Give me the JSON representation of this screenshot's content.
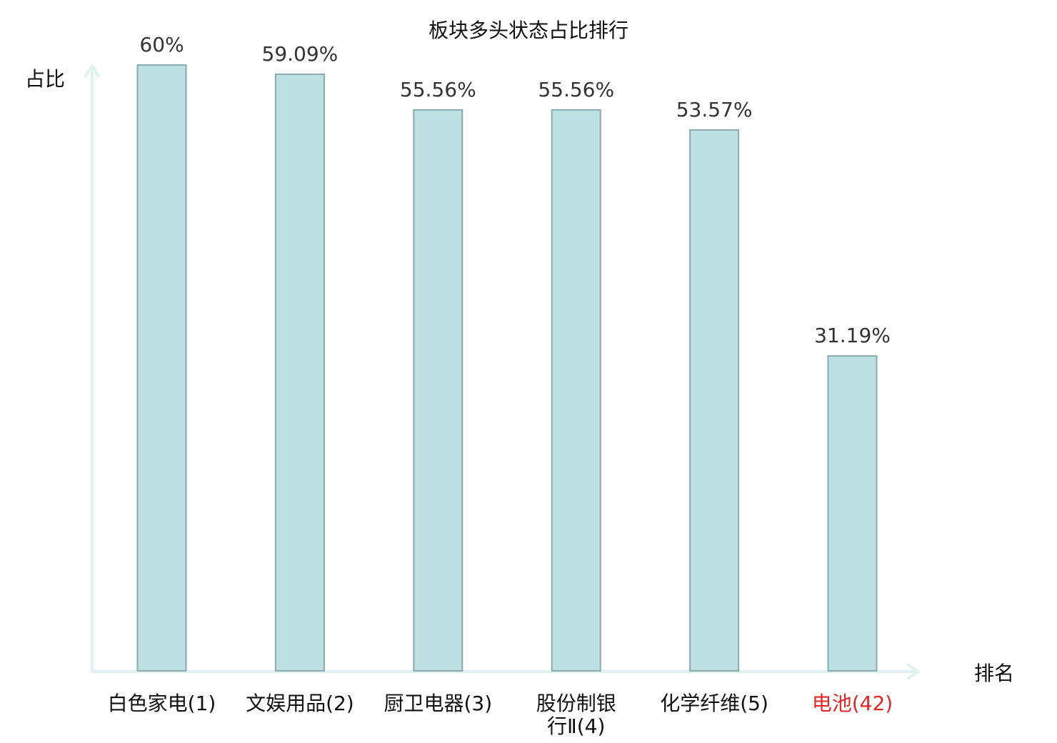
{
  "chart_data": {
    "type": "bar",
    "title": "板块多头状态占比排行",
    "ylabel": "占比",
    "xlabel": "排名",
    "categories": [
      "白色家电(1)",
      "文娱用品(2)",
      "厨卫电器(3)",
      "股份制银行Ⅱ(4)",
      "化学纤维(5)",
      "电池(42)"
    ],
    "category_lines": [
      [
        "白色家电(1)"
      ],
      [
        "文娱用品(2)"
      ],
      [
        "厨卫电器(3)"
      ],
      [
        "股份制银",
        "行Ⅱ(4)"
      ],
      [
        "化学纤维(5)"
      ],
      [
        "电池(42)"
      ]
    ],
    "values": [
      60,
      59.09,
      55.56,
      55.56,
      53.57,
      31.19
    ],
    "value_labels": [
      "60%",
      "59.09%",
      "55.56%",
      "55.56%",
      "53.57%",
      "31.19%"
    ],
    "highlight_index": 5,
    "ylim": [
      0,
      60
    ],
    "grid": false,
    "colors": {
      "bar_fill": "#bde0e3",
      "bar_stroke": "#8aaaad",
      "axis": "#e0f2ef",
      "highlight_label": "#e32626",
      "label": "#111111",
      "value_label": "#333333"
    }
  }
}
